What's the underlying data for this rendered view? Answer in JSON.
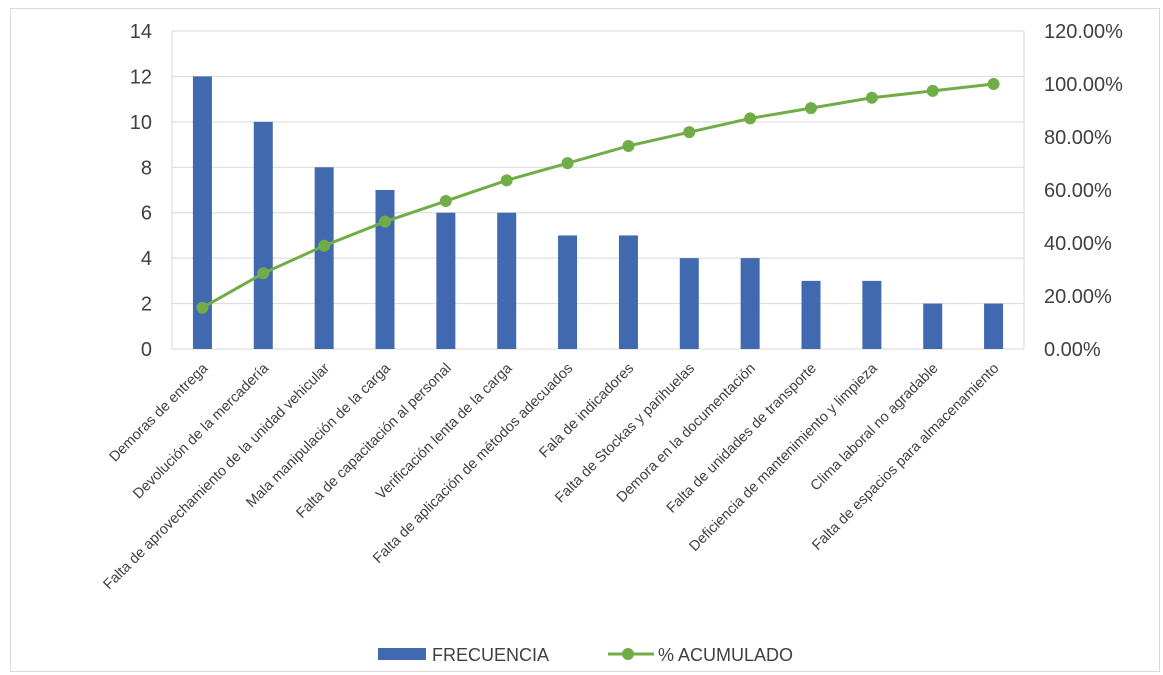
{
  "chart_data": {
    "type": "bar",
    "categories": [
      "Demoras de entrega",
      "Devolución de la mercadería",
      "Falta de aprovechamiento de la unidad vehicular",
      "Mala manipulación de la carga",
      "Falta de capacitación al personal",
      "Verificación lenta de la carga",
      "Falta de aplicación de métodos adecuados",
      "Fala de indicadores",
      "Falta de Stockas y parihuelas",
      "Demora en la documentación",
      "Falta de unidades de transporte",
      "Deficiencia de mantenimiento y limpieza",
      "Clima laboral no agradable",
      "Falta de espacios para almacenamiento"
    ],
    "series": [
      {
        "name": "FRECUENCIA",
        "type": "bar",
        "axis": "left",
        "color": "#4169b0",
        "values": [
          12,
          10,
          8,
          7,
          6,
          6,
          5,
          5,
          4,
          4,
          3,
          3,
          2,
          2
        ]
      },
      {
        "name": "% ACUMULADO",
        "type": "line",
        "axis": "right",
        "color": "#70ad47",
        "values": [
          0.1558,
          0.2857,
          0.3896,
          0.4805,
          0.5584,
          0.6364,
          0.7013,
          0.7662,
          0.8182,
          0.8701,
          0.9091,
          0.9481,
          0.974,
          1.0
        ]
      }
    ],
    "y_left": {
      "ylim": [
        0,
        14
      ],
      "ticks": [
        "0",
        "2",
        "4",
        "6",
        "8",
        "10",
        "12",
        "14"
      ]
    },
    "y_right": {
      "ylim": [
        0,
        1.2
      ],
      "ticks": [
        "0.00%",
        "20.00%",
        "40.00%",
        "60.00%",
        "80.00%",
        "100.00%",
        "120.00%"
      ]
    },
    "grid": true,
    "legend_position": "bottom"
  }
}
